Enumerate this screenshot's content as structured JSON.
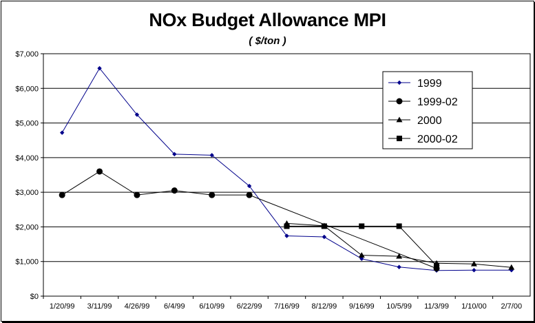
{
  "chart_data": {
    "type": "line",
    "title": "NOx Budget Allowance MPI",
    "subtitle": "( $/ton )",
    "xlabel": "",
    "ylabel": "",
    "categories": [
      "1/20/99",
      "3/11/99",
      "4/26/99",
      "6/4/99",
      "6/10/99",
      "6/22/99",
      "7/16/99",
      "8/12/99",
      "9/16/99",
      "10/5/99",
      "11/3/99",
      "1/10/00",
      "2/7/00"
    ],
    "ylim": [
      0,
      7000
    ],
    "yticks": [
      0,
      1000,
      2000,
      3000,
      4000,
      5000,
      6000,
      7000
    ],
    "ytick_labels": [
      "$0",
      "$1,000",
      "$2,000",
      "$3,000",
      "$4,000",
      "$5,000",
      "$6,000",
      "$7,000"
    ],
    "grid": true,
    "legend_position": "top-right",
    "series": [
      {
        "name": "1999",
        "marker": "diamond",
        "color": "#00008b",
        "values": [
          4720,
          6580,
          5240,
          4100,
          4070,
          3180,
          1740,
          1710,
          1080,
          840,
          740,
          750,
          750
        ]
      },
      {
        "name": "1999-02",
        "marker": "circle",
        "color": "#000000",
        "values": [
          2920,
          3600,
          2920,
          3050,
          2920,
          2920,
          null,
          null,
          null,
          null,
          800,
          null,
          null
        ]
      },
      {
        "name": "2000",
        "marker": "triangle",
        "color": "#000000",
        "values": [
          null,
          null,
          null,
          null,
          null,
          null,
          2100,
          2030,
          1180,
          1150,
          950,
          930,
          830
        ]
      },
      {
        "name": "2000-02",
        "marker": "square",
        "color": "#000000",
        "values": [
          null,
          null,
          null,
          null,
          null,
          null,
          2020,
          2020,
          2020,
          2020,
          880,
          null,
          null
        ]
      }
    ]
  }
}
